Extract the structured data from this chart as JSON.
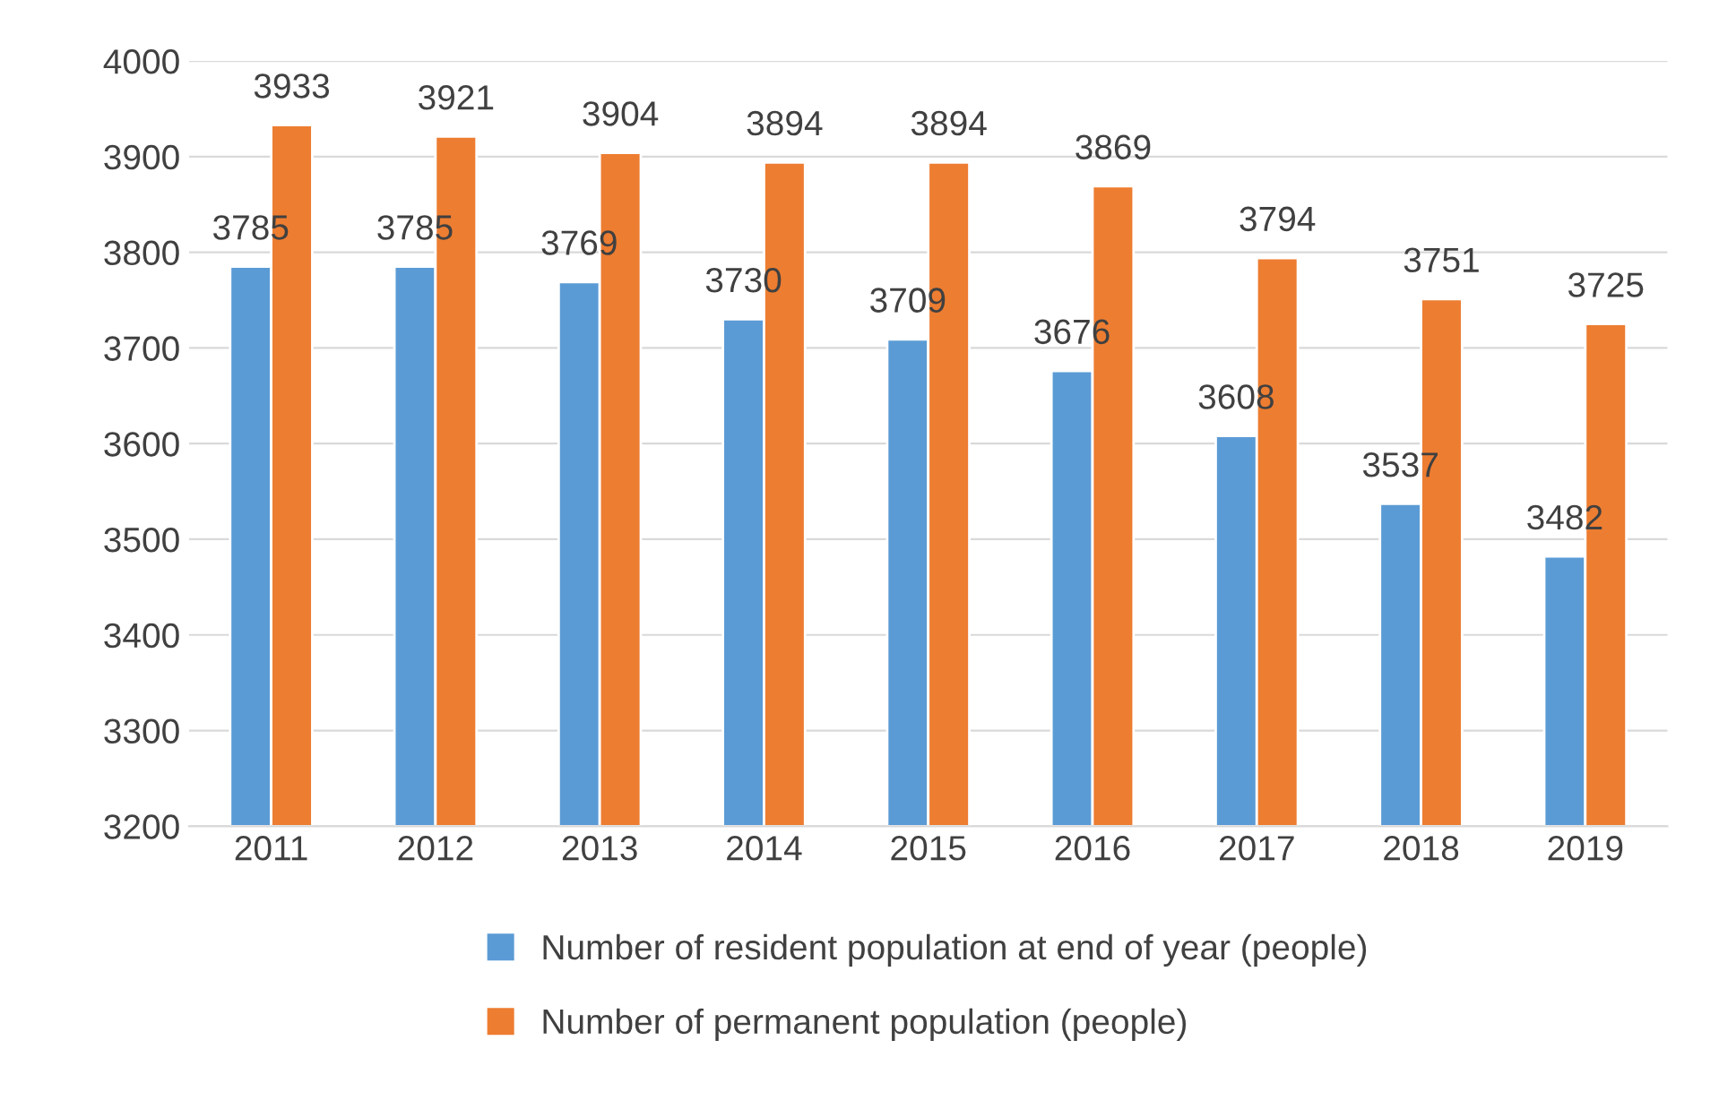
{
  "chart_data": {
    "type": "bar",
    "categories": [
      "2011",
      "2012",
      "2013",
      "2014",
      "2015",
      "2016",
      "2017",
      "2018",
      "2019"
    ],
    "series": [
      {
        "name": "Number of resident population at end of year (people)",
        "color": "#5b9bd5",
        "values": [
          3785,
          3785,
          3769,
          3730,
          3709,
          3676,
          3608,
          3537,
          3482
        ]
      },
      {
        "name": "Number of permanent population (people)",
        "color": "#ed7d31",
        "values": [
          3933,
          3921,
          3904,
          3894,
          3894,
          3869,
          3794,
          3751,
          3725
        ]
      }
    ],
    "ylim": [
      3200,
      4000
    ],
    "yticks": [
      3200,
      3300,
      3400,
      3500,
      3600,
      3700,
      3800,
      3900,
      4000
    ],
    "grid": "y",
    "legend": "bottom",
    "data_labels": true
  }
}
